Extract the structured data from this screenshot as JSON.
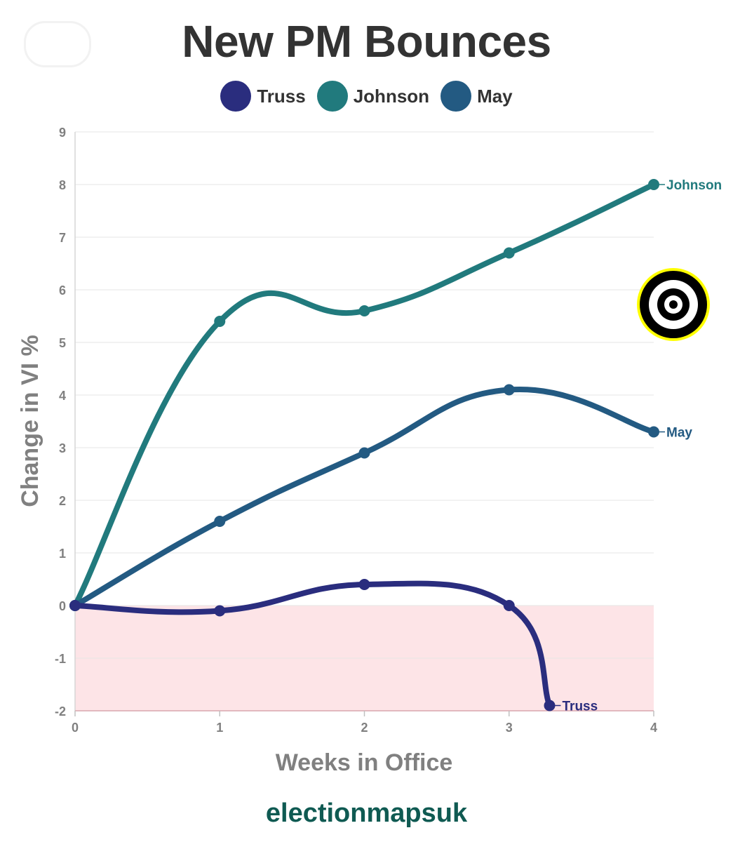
{
  "chart_data": {
    "type": "line",
    "title": "New PM Bounces",
    "xlabel": "Weeks in Office",
    "ylabel": "Change in VI %",
    "xlim": [
      0,
      4
    ],
    "ylim": [
      -2,
      9
    ],
    "x_ticks": [
      0,
      1,
      2,
      3,
      4
    ],
    "y_ticks": [
      -2,
      -1,
      0,
      1,
      2,
      3,
      4,
      5,
      6,
      7,
      8,
      9
    ],
    "grid": true,
    "legend_position": "top-center",
    "negative_region_color": "#fde4e7",
    "series": [
      {
        "name": "Truss",
        "color": "#2a2d7e",
        "end_label": "Truss",
        "x": [
          0,
          1,
          2,
          3,
          3.28
        ],
        "y": [
          0,
          -0.1,
          0.4,
          0,
          -1.9
        ]
      },
      {
        "name": "Johnson",
        "color": "#217a7d",
        "end_label": "Johnson",
        "x": [
          0,
          1,
          2,
          3,
          4
        ],
        "y": [
          0,
          5.4,
          5.6,
          6.7,
          8
        ]
      },
      {
        "name": "May",
        "color": "#235a82",
        "end_label": "May",
        "x": [
          0,
          1,
          2,
          3,
          4
        ],
        "y": [
          0,
          1.6,
          2.9,
          4.1,
          3.3
        ]
      }
    ]
  },
  "legend": [
    {
      "label": "Truss",
      "color": "#2a2d7e"
    },
    {
      "label": "Johnson",
      "color": "#217a7d"
    },
    {
      "label": "May",
      "color": "#235a82"
    }
  ],
  "footer": {
    "credit": "electionmapsuk"
  },
  "logo": {
    "icon": "concentric-circle-logo",
    "colors": [
      "#000000",
      "#ffff00"
    ]
  }
}
